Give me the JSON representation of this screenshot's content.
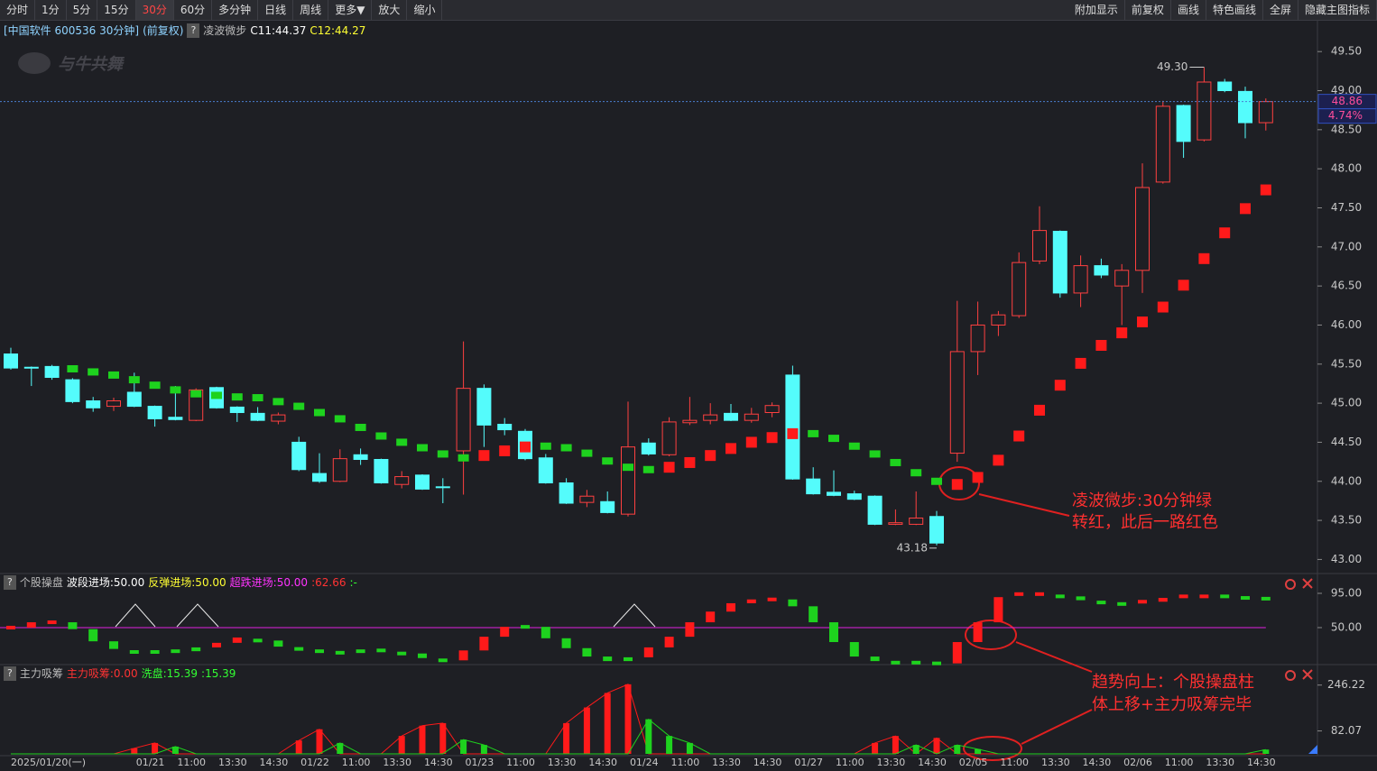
{
  "toolbar": {
    "left": [
      "分时",
      "1分",
      "5分",
      "15分",
      "30分",
      "60分",
      "多分钟",
      "日线",
      "周线",
      "更多▼",
      "放大",
      "缩小"
    ],
    "right": [
      "附加显示",
      "前复权",
      "画线",
      "特色画线",
      "全屏",
      "隐藏主图指标"
    ],
    "active_index": 4
  },
  "help_icon": "?",
  "watermark": "与牛共舞",
  "annotations": [
    "凌波微步:30分钟绿",
    "转红，此后一路红色",
    "趋势向上：个股操盘柱",
    "体上移+主力吸筹完毕"
  ],
  "chart_data": [
    {
      "type": "candlestick",
      "title": "[中国软件 600536 30分钟]",
      "subtitle": "(前复权)",
      "indicator_name": "凌波微步",
      "legend": [
        {
          "text": "C11:44.37",
          "color": "#ffffff"
        },
        {
          "text": "C12:44.27",
          "color": "#ffff33"
        }
      ],
      "categories": [
        "2025/01/20(一)",
        null,
        null,
        null,
        null,
        null,
        null,
        "01/21",
        null,
        "11:00",
        null,
        "13:30",
        null,
        "14:30",
        null,
        "01/22",
        null,
        "11:00",
        null,
        "13:30",
        null,
        "14:30",
        null,
        "01/23",
        null,
        "11:00",
        null,
        "13:30",
        null,
        "14:30",
        null,
        "01/24",
        null,
        "11:00",
        null,
        "13:30",
        null,
        "14:30",
        null,
        "01/27",
        null,
        "11:00",
        null,
        "13:30",
        null,
        "14:30",
        null,
        "02/05",
        null,
        "11:00",
        null,
        "13:30",
        null,
        "14:30",
        null,
        "02/06",
        null,
        "11:00",
        null,
        "13:30",
        null,
        "14:30"
      ],
      "open": [
        45.63,
        45.46,
        45.47,
        45.3,
        45.03,
        44.96,
        45.14,
        44.96,
        44.82,
        44.78,
        45.2,
        44.95,
        44.87,
        44.77,
        44.5,
        44.1,
        44.0,
        44.34,
        44.28,
        43.96,
        44.08,
        43.93,
        44.39,
        45.19,
        44.73,
        44.64,
        44.3,
        43.98,
        43.73,
        43.74,
        43.58,
        44.49,
        44.34,
        44.75,
        44.78,
        44.87,
        44.78,
        44.88,
        45.36,
        44.03,
        43.86,
        43.84,
        43.81,
        43.45,
        43.45,
        43.55,
        44.36,
        45.66,
        46.0,
        46.12,
        46.82,
        47.2,
        46.41,
        46.76,
        46.5,
        46.7,
        47.83,
        48.81,
        48.37,
        49.11,
        48.99,
        48.59
      ],
      "high": [
        45.71,
        45.47,
        45.49,
        45.32,
        45.08,
        45.07,
        45.39,
        44.97,
        45.22,
        45.19,
        45.21,
        44.96,
        44.95,
        44.88,
        44.57,
        44.36,
        44.41,
        44.42,
        44.29,
        44.13,
        44.09,
        44.04,
        45.79,
        45.24,
        44.81,
        44.67,
        44.35,
        44.04,
        43.89,
        43.87,
        45.02,
        44.55,
        44.82,
        45.08,
        45.0,
        44.99,
        44.94,
        45.01,
        45.48,
        44.18,
        44.14,
        43.88,
        43.82,
        43.64,
        43.87,
        43.62,
        46.31,
        46.3,
        46.18,
        46.93,
        47.52,
        47.21,
        46.89,
        46.85,
        46.78,
        48.07,
        48.87,
        48.82,
        49.3,
        49.15,
        49.05,
        48.9
      ],
      "low": [
        45.43,
        45.22,
        45.3,
        45.0,
        44.89,
        44.9,
        44.95,
        44.7,
        44.78,
        44.77,
        44.93,
        44.76,
        44.77,
        44.73,
        44.13,
        43.98,
        43.99,
        44.21,
        43.97,
        43.91,
        43.89,
        43.72,
        43.83,
        44.44,
        44.59,
        44.27,
        43.97,
        43.71,
        43.67,
        43.59,
        43.55,
        44.33,
        44.32,
        44.72,
        44.73,
        44.77,
        44.75,
        44.82,
        44.02,
        43.83,
        43.81,
        43.76,
        43.44,
        43.44,
        43.44,
        43.18,
        44.25,
        45.36,
        45.86,
        46.09,
        46.78,
        46.35,
        46.23,
        46.6,
        46.0,
        46.41,
        47.81,
        48.14,
        48.35,
        48.98,
        48.39,
        48.49
      ],
      "close": [
        45.45,
        45.45,
        45.33,
        45.02,
        44.94,
        45.03,
        44.96,
        44.8,
        44.79,
        45.17,
        44.94,
        44.88,
        44.78,
        44.85,
        44.15,
        44.0,
        44.29,
        44.28,
        43.98,
        44.06,
        43.9,
        43.92,
        45.19,
        44.72,
        44.66,
        44.29,
        43.98,
        43.72,
        43.81,
        43.6,
        44.44,
        44.35,
        44.76,
        44.78,
        44.85,
        44.78,
        44.86,
        44.97,
        44.03,
        43.84,
        43.82,
        43.77,
        43.45,
        43.47,
        43.53,
        43.21,
        45.66,
        46.0,
        46.13,
        46.8,
        47.21,
        46.41,
        46.76,
        46.64,
        46.7,
        47.76,
        48.8,
        48.35,
        49.11,
        49.0,
        48.59,
        48.86
      ],
      "up_color": "#ff4040",
      "down_color": "#54fcfc",
      "series": [
        {
          "name": "凌波微步",
          "values": [
            null,
            null,
            null,
            45.44,
            45.4,
            45.36,
            45.3,
            45.23,
            45.17,
            45.12,
            45.1,
            45.08,
            45.07,
            45.02,
            44.96,
            44.88,
            44.8,
            44.69,
            44.58,
            44.5,
            44.43,
            44.35,
            44.3,
            44.33,
            44.39,
            44.44,
            44.45,
            44.43,
            44.36,
            44.26,
            44.18,
            44.15,
            44.18,
            44.24,
            44.33,
            44.42,
            44.5,
            44.56,
            44.61,
            44.61,
            44.55,
            44.45,
            44.35,
            44.24,
            44.11,
            44.0,
            43.96,
            44.05,
            44.27,
            44.58,
            44.91,
            45.23,
            45.51,
            45.74,
            45.9,
            46.04,
            46.23,
            46.51,
            46.85,
            47.18,
            47.49,
            47.73
          ],
          "colors": [
            "#1ed21e",
            "#1ed21e",
            "#1ed21e",
            "#1ed21e",
            "#1ed21e",
            "#1ed21e",
            "#1ed21e",
            "#1ed21e",
            "#1ed21e",
            "#1ed21e",
            "#1ed21e",
            "#1ed21e",
            "#1ed21e",
            "#1ed21e",
            "#1ed21e",
            "#1ed21e",
            "#1ed21e",
            "#1ed21e",
            "#1ed21e",
            "#1ed21e",
            "#1ed21e",
            "#1ed21e",
            "#1ed21e",
            "#ff1a1a",
            "#ff1a1a",
            "#ff1a1a",
            "#1ed21e",
            "#1ed21e",
            "#1ed21e",
            "#1ed21e",
            "#1ed21e",
            "#1ed21e",
            "#ff1a1a",
            "#ff1a1a",
            "#ff1a1a",
            "#ff1a1a",
            "#ff1a1a",
            "#ff1a1a",
            "#ff1a1a",
            "#1ed21e",
            "#1ed21e",
            "#1ed21e",
            "#1ed21e",
            "#1ed21e",
            "#1ed21e",
            "#1ed21e",
            "#ff1a1a",
            "#ff1a1a",
            "#ff1a1a",
            "#ff1a1a",
            "#ff1a1a",
            "#ff1a1a",
            "#ff1a1a",
            "#ff1a1a",
            "#ff1a1a",
            "#ff1a1a",
            "#ff1a1a",
            "#ff1a1a",
            "#ff1a1a",
            "#ff1a1a",
            "#ff1a1a",
            "#ff1a1a"
          ]
        }
      ],
      "ylim": [
        42.82,
        49.86
      ],
      "yticks": [
        {
          "value": 43.0,
          "label": "43.00"
        },
        {
          "value": 43.5,
          "label": "43.50"
        },
        {
          "value": 44.0,
          "label": "44.00"
        },
        {
          "value": 44.5,
          "label": "44.50"
        },
        {
          "value": 45.0,
          "label": "45.00"
        },
        {
          "value": 45.5,
          "label": "45.50"
        },
        {
          "value": 46.0,
          "label": "46.00"
        },
        {
          "value": 46.5,
          "label": "46.50"
        },
        {
          "value": 47.0,
          "label": "47.00"
        },
        {
          "value": 47.5,
          "label": "47.50"
        },
        {
          "value": 48.0,
          "label": "48.00"
        },
        {
          "value": 48.5,
          "label": "48.50"
        },
        {
          "value": 49.0,
          "label": "49.00"
        },
        {
          "value": 49.5,
          "label": "49.50"
        }
      ],
      "last_price_label": "48.86",
      "change_label": "4.74%",
      "high_label": "49.30",
      "low_label": "43.18"
    },
    {
      "type": "step_bar",
      "title": "个股操盘",
      "legend": [
        {
          "text": "波段进场:50.00",
          "color": "#ffffff"
        },
        {
          "text": "反弹进场:50.00",
          "color": "#ffff33"
        },
        {
          "text": "超跌进场:50.00",
          "color": "#ff33ff"
        },
        {
          "text": ":62.66",
          "color": "#ff3333"
        },
        {
          "text": ":-",
          "color": "#33ff33"
        }
      ],
      "series": [
        {
          "name": "个股操盘",
          "values": [
            50,
            57,
            57,
            48,
            32,
            22,
            18,
            18,
            19,
            24,
            30,
            37,
            33,
            25,
            22,
            19,
            17,
            19,
            20,
            16,
            10,
            7,
            20,
            38,
            51,
            51,
            36,
            23,
            12,
            6,
            11,
            24,
            38,
            57,
            71,
            82,
            87,
            87,
            78,
            57,
            31,
            12,
            6,
            4,
            4,
            3,
            31,
            57,
            90,
            94,
            94,
            91,
            86,
            83,
            81,
            84,
            89,
            91,
            91,
            91,
            89,
            88
          ],
          "colors": [
            "#ff1a1a",
            "#ff1a1a",
            "#ff1a1a",
            "#1ed21e",
            "#1ed21e",
            "#1ed21e",
            "#1ed21e",
            "#1ed21e",
            "#1ed21e",
            "#1ed21e",
            "#ff1a1a",
            "#ff1a1a",
            "#1ed21e",
            "#1ed21e",
            "#1ed21e",
            "#1ed21e",
            "#1ed21e",
            "#1ed21e",
            "#1ed21e",
            "#1ed21e",
            "#1ed21e",
            "#1ed21e",
            "#ff1a1a",
            "#ff1a1a",
            "#ff1a1a",
            "#1ed21e",
            "#1ed21e",
            "#1ed21e",
            "#1ed21e",
            "#1ed21e",
            "#1ed21e",
            "#ff1a1a",
            "#ff1a1a",
            "#ff1a1a",
            "#ff1a1a",
            "#ff1a1a",
            "#ff1a1a",
            "#ff1a1a",
            "#1ed21e",
            "#1ed21e",
            "#1ed21e",
            "#1ed21e",
            "#1ed21e",
            "#1ed21e",
            "#1ed21e",
            "#1ed21e",
            "#ff1a1a",
            "#ff1a1a",
            "#ff1a1a",
            "#ff1a1a",
            "#ff1a1a",
            "#1ed21e",
            "#1ed21e",
            "#1ed21e",
            "#1ed21e",
            "#ff1a1a",
            "#ff1a1a",
            "#ff1a1a",
            "#ff1a1a",
            "#1ed21e",
            "#1ed21e",
            "#1ed21e"
          ]
        }
      ],
      "reference_line": 50,
      "reference_color": "#e020e0",
      "ylim": [
        2.6,
        116.3
      ],
      "yticks": [
        {
          "value": 95,
          "label": "95.00"
        },
        {
          "value": 50,
          "label": "50.00"
        }
      ]
    },
    {
      "type": "bar_line",
      "title": "主力吸筹",
      "legend": [
        {
          "text": "主力吸筹:0.00",
          "color": "#ff3333"
        },
        {
          "text": "洗盘:15.39",
          "color": "#33ff33"
        },
        {
          "text": ":15.39",
          "color": "#33ff33"
        }
      ],
      "series": [
        {
          "name": "主力吸筹",
          "color": "#ff1a1a",
          "values": [
            0,
            0,
            0,
            0,
            0,
            0,
            20,
            39,
            0,
            0,
            0,
            0,
            0,
            0,
            48,
            88,
            0,
            0,
            0,
            64,
            101,
            110,
            0,
            0,
            0,
            0,
            0,
            110,
            166,
            218,
            249,
            0,
            0,
            0,
            0,
            0,
            0,
            0,
            0,
            0,
            0,
            0,
            39,
            64,
            0,
            57,
            0,
            0,
            0,
            0,
            0,
            0,
            0,
            0,
            0,
            0,
            0,
            0,
            0,
            0,
            0,
            0
          ]
        },
        {
          "name": "洗盘",
          "color": "#1ed21e",
          "values": [
            0,
            0,
            0,
            0,
            0,
            0,
            0,
            0,
            26,
            0,
            0,
            0,
            0,
            0,
            0,
            0,
            39,
            0,
            0,
            0,
            0,
            0,
            51,
            32,
            0,
            0,
            0,
            0,
            0,
            0,
            0,
            124,
            64,
            39,
            0,
            0,
            0,
            0,
            0,
            0,
            0,
            0,
            0,
            0,
            32,
            0,
            32,
            17,
            0,
            0,
            0,
            0,
            0,
            0,
            0,
            0,
            0,
            0,
            0,
            0,
            0,
            15.39
          ]
        }
      ],
      "ylim": [
        0,
        255
      ],
      "yticks": [
        {
          "value": 246.22,
          "label": "246.22"
        },
        {
          "value": 82.07,
          "label": "82.07"
        }
      ]
    }
  ]
}
